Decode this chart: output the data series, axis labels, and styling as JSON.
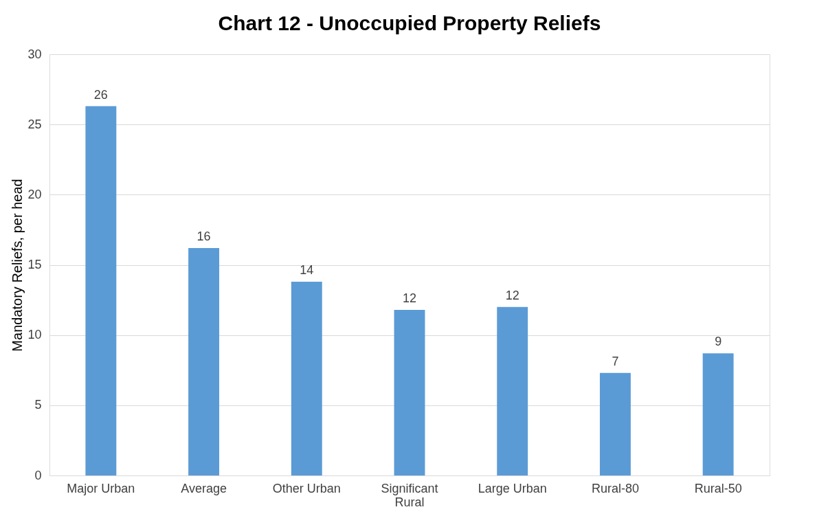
{
  "chart_data": {
    "type": "bar",
    "title": "Chart 12 - Unoccupied Property Reliefs",
    "ylabel": "Mandatory Reliefs, per head",
    "categories": [
      "Major Urban",
      "Average",
      "Other Urban",
      "Significant Rural",
      "Large Urban",
      "Rural-80",
      "Rural-50"
    ],
    "values": [
      26.3,
      16.2,
      13.8,
      11.8,
      12.0,
      7.3,
      8.7
    ],
    "value_labels": [
      "26",
      "16",
      "14",
      "12",
      "12",
      "7",
      "9"
    ],
    "color": "#5b9bd5",
    "ylim": [
      0,
      30
    ],
    "yticks": [
      0,
      5,
      10,
      15,
      20,
      25,
      30
    ],
    "grid": "y"
  }
}
